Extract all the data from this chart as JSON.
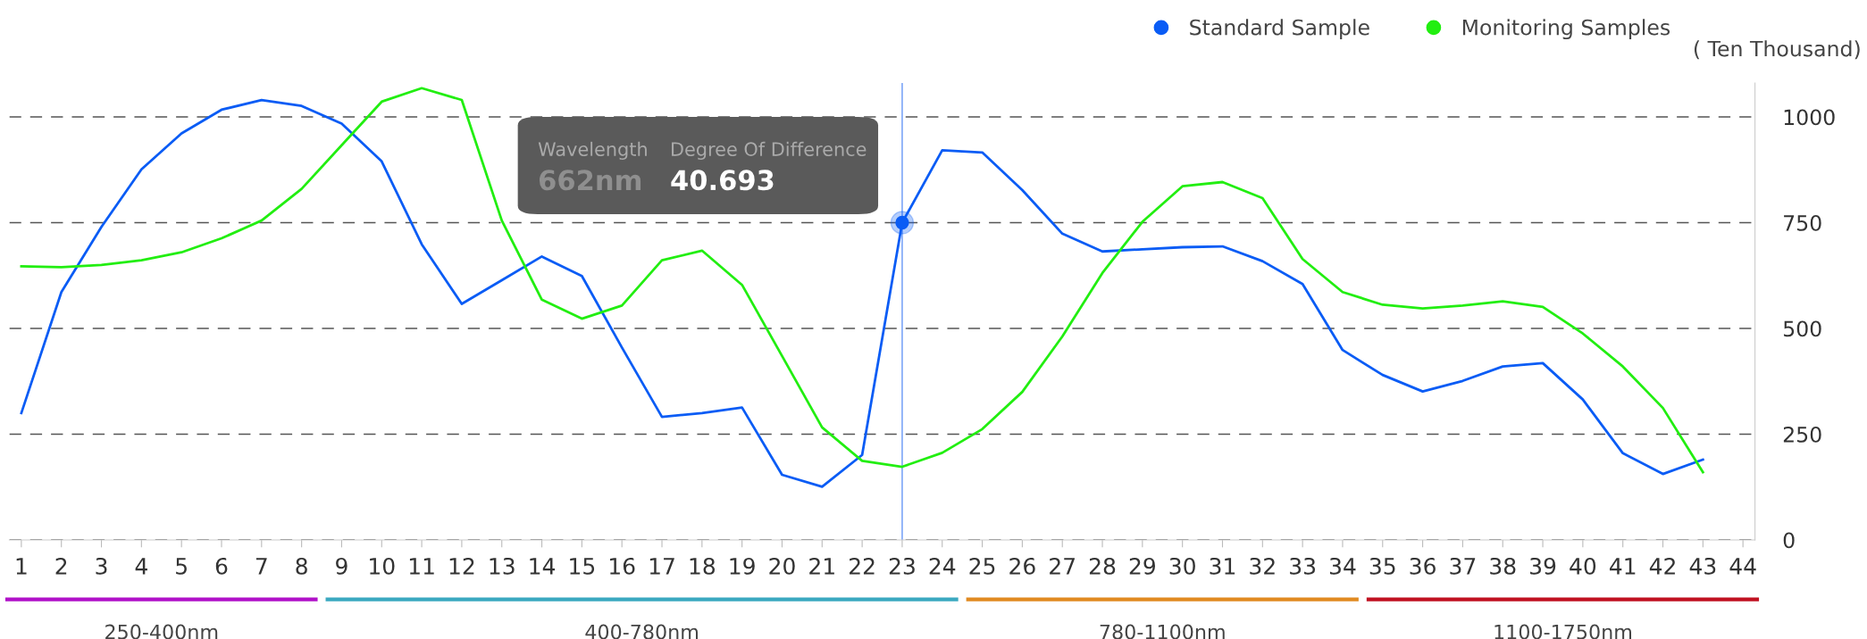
{
  "chart_data": {
    "type": "line",
    "ylabel": "( Ten Thousand)",
    "categories": [
      "1",
      "2",
      "3",
      "4",
      "5",
      "6",
      "7",
      "8",
      "9",
      "10",
      "11",
      "12",
      "13",
      "14",
      "15",
      "16",
      "17",
      "18",
      "19",
      "20",
      "21",
      "22",
      "23",
      "24",
      "25",
      "26",
      "27",
      "28",
      "29",
      "30",
      "31",
      "32",
      "33",
      "34",
      "35",
      "36",
      "37",
      "38",
      "39",
      "40",
      "41",
      "42",
      "43",
      "44"
    ],
    "series": [
      {
        "name": "Standard Sample",
        "color": "#0a5cf5",
        "values": [
          300,
          586,
          740,
          876,
          961,
          1017,
          1040,
          1026,
          984,
          895,
          699,
          558,
          614,
          670,
          624,
          455,
          291,
          300,
          313,
          154,
          126,
          201,
          750,
          921,
          916,
          827,
          724,
          682,
          687,
          692,
          694,
          659,
          605,
          449,
          390,
          351,
          376,
          410,
          418,
          332,
          205,
          156,
          190,
          null
        ]
      },
      {
        "name": "Monitoring Samples",
        "color": "#22ee11",
        "values": [
          647,
          645,
          650,
          661,
          680,
          713,
          755,
          830,
          933,
          1036,
          1068,
          1040,
          755,
          568,
          523,
          554,
          661,
          684,
          603,
          435,
          266,
          187,
          173,
          206,
          262,
          350,
          481,
          631,
          752,
          836,
          846,
          808,
          664,
          586,
          556,
          547,
          554,
          564,
          551,
          488,
          410,
          312,
          160,
          null
        ]
      }
    ],
    "ylim": [
      0,
      1080
    ],
    "yticks": [
      0,
      250,
      500,
      750,
      1000
    ],
    "grid": "y",
    "legend": "top right",
    "marker": "none",
    "line_style": "solid",
    "ref_lines": [
      {
        "axis": "x",
        "value": "23",
        "color": "#7fa8f8",
        "line_style": "solid"
      }
    ],
    "annotations": [
      "Wavelength",
      "Degree Of Difference",
      "662nm",
      "40.693",
      "250-400nm",
      "400-780nm",
      "780-1100nm",
      "1100-1750nm"
    ]
  }
}
